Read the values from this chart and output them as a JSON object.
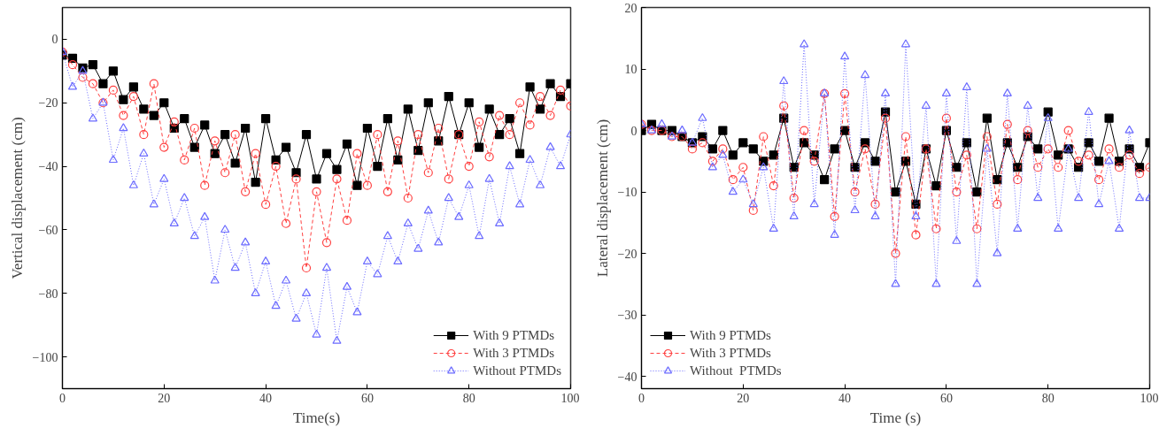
{
  "chart_data": [
    {
      "type": "line",
      "xlabel": "Time(s)",
      "ylabel": "Vertical displacement (cm)",
      "xlim": [
        0,
        100
      ],
      "xticks": [
        0,
        20,
        40,
        60,
        80,
        100
      ],
      "ylim": [
        -110,
        10
      ],
      "yticks": [
        -100,
        -80,
        -60,
        -40,
        -20,
        0
      ],
      "grid": false,
      "legend": "bottom right",
      "x": [
        0,
        2,
        4,
        6,
        8,
        10,
        12,
        14,
        16,
        18,
        20,
        22,
        24,
        26,
        28,
        30,
        32,
        34,
        36,
        38,
        40,
        42,
        44,
        46,
        48,
        50,
        52,
        54,
        56,
        58,
        60,
        62,
        64,
        66,
        68,
        70,
        72,
        74,
        76,
        78,
        80,
        82,
        84,
        86,
        88,
        90,
        92,
        94,
        96,
        98,
        100
      ],
      "series": [
        {
          "name": "With 9 PTMDs",
          "color": "#000000",
          "marker": "square",
          "line_style": "solid",
          "values": [
            -5,
            -6,
            -9,
            -8,
            -14,
            -10,
            -19,
            -15,
            -22,
            -24,
            -20,
            -28,
            -25,
            -34,
            -27,
            -36,
            -30,
            -39,
            -28,
            -45,
            -25,
            -38,
            -34,
            -42,
            -30,
            -44,
            -36,
            -41,
            -33,
            -46,
            -28,
            -40,
            -25,
            -38,
            -22,
            -35,
            -20,
            -32,
            -18,
            -30,
            -20,
            -34,
            -22,
            -30,
            -25,
            -36,
            -15,
            -22,
            -14,
            -18,
            -14
          ]
        },
        {
          "name": "With 3 PTMDs",
          "color": "#ff4040",
          "marker": "circle",
          "line_style": "dashed",
          "values": [
            -4,
            -8,
            -12,
            -14,
            -20,
            -16,
            -24,
            -18,
            -30,
            -14,
            -34,
            -26,
            -38,
            -28,
            -46,
            -32,
            -42,
            -30,
            -48,
            -36,
            -52,
            -40,
            -58,
            -44,
            -72,
            -48,
            -64,
            -44,
            -57,
            -36,
            -46,
            -30,
            -48,
            -32,
            -50,
            -30,
            -42,
            -28,
            -44,
            -30,
            -40,
            -26,
            -37,
            -24,
            -30,
            -20,
            -27,
            -18,
            -24,
            -16,
            -21
          ]
        },
        {
          "name": "Without PTMDs",
          "color": "#6b6bff",
          "marker": "triangle",
          "line_style": "dotted",
          "values": [
            -4,
            -15,
            -10,
            -25,
            -20,
            -38,
            -28,
            -46,
            -36,
            -52,
            -44,
            -58,
            -50,
            -62,
            -56,
            -76,
            -60,
            -72,
            -64,
            -80,
            -70,
            -84,
            -76,
            -88,
            -80,
            -93,
            -72,
            -95,
            -78,
            -86,
            -70,
            -74,
            -62,
            -70,
            -58,
            -66,
            -54,
            -64,
            -50,
            -56,
            -46,
            -62,
            -44,
            -58,
            -40,
            -52,
            -38,
            -46,
            -34,
            -40,
            -30
          ]
        }
      ]
    },
    {
      "type": "line",
      "xlabel": "Time (s)",
      "ylabel": "Lateral displacement (cm)",
      "xlim": [
        0,
        100
      ],
      "xticks": [
        0,
        20,
        40,
        60,
        80,
        100
      ],
      "ylim": [
        -42,
        20
      ],
      "yticks": [
        -40,
        -30,
        -20,
        -10,
        0,
        10,
        20
      ],
      "grid": false,
      "legend": "bottom left",
      "x": [
        0,
        2,
        4,
        6,
        8,
        10,
        12,
        14,
        16,
        18,
        20,
        22,
        24,
        26,
        28,
        30,
        32,
        34,
        36,
        38,
        40,
        42,
        44,
        46,
        48,
        50,
        52,
        54,
        56,
        58,
        60,
        62,
        64,
        66,
        68,
        70,
        72,
        74,
        76,
        78,
        80,
        82,
        84,
        86,
        88,
        90,
        92,
        94,
        96,
        98,
        100
      ],
      "series": [
        {
          "name": "With 9 PTMDs",
          "color": "#000000",
          "marker": "square",
          "line_style": "solid",
          "values": [
            0,
            1,
            0,
            0,
            -1,
            -2,
            -1,
            -3,
            0,
            -4,
            -2,
            -3,
            -5,
            -4,
            2,
            -6,
            -2,
            -4,
            -8,
            -3,
            0,
            -6,
            -2,
            -5,
            3,
            -10,
            -5,
            -12,
            -3,
            -9,
            0,
            -6,
            -2,
            -10,
            2,
            -8,
            -2,
            -6,
            -1,
            -3,
            3,
            -4,
            -3,
            -6,
            -2,
            -5,
            2,
            -5,
            -3,
            -6,
            -2
          ]
        },
        {
          "name": "With 3 PTMDs",
          "color": "#ff4040",
          "marker": "circle",
          "line_style": "dashed",
          "values": [
            1,
            0,
            0,
            -1,
            -1,
            -3,
            -2,
            -5,
            -3,
            -8,
            -6,
            -13,
            -1,
            -9,
            4,
            -11,
            0,
            -5,
            6,
            -14,
            6,
            -10,
            -3,
            -12,
            2,
            -20,
            -1,
            -17,
            -3,
            -16,
            2,
            -10,
            -4,
            -16,
            -1,
            -12,
            1,
            -8,
            0,
            -6,
            -3,
            -6,
            0,
            -5,
            -4,
            -8,
            -3,
            -6,
            -4,
            -7,
            -6
          ]
        },
        {
          "name": "Without  PTMDs",
          "color": "#6b6bff",
          "marker": "triangle",
          "line_style": "dotted",
          "values": [
            1,
            0,
            1,
            -1,
            0,
            -2,
            2,
            -6,
            -4,
            -10,
            -8,
            -12,
            -6,
            -16,
            8,
            -14,
            14,
            -12,
            6,
            -17,
            12,
            -13,
            9,
            -14,
            6,
            -25,
            14,
            -14,
            4,
            -25,
            6,
            -18,
            7,
            -25,
            -3,
            -20,
            6,
            -16,
            4,
            -11,
            2,
            -16,
            -3,
            -11,
            3,
            -12,
            -5,
            -16,
            0,
            -11,
            -11
          ]
        }
      ]
    }
  ]
}
